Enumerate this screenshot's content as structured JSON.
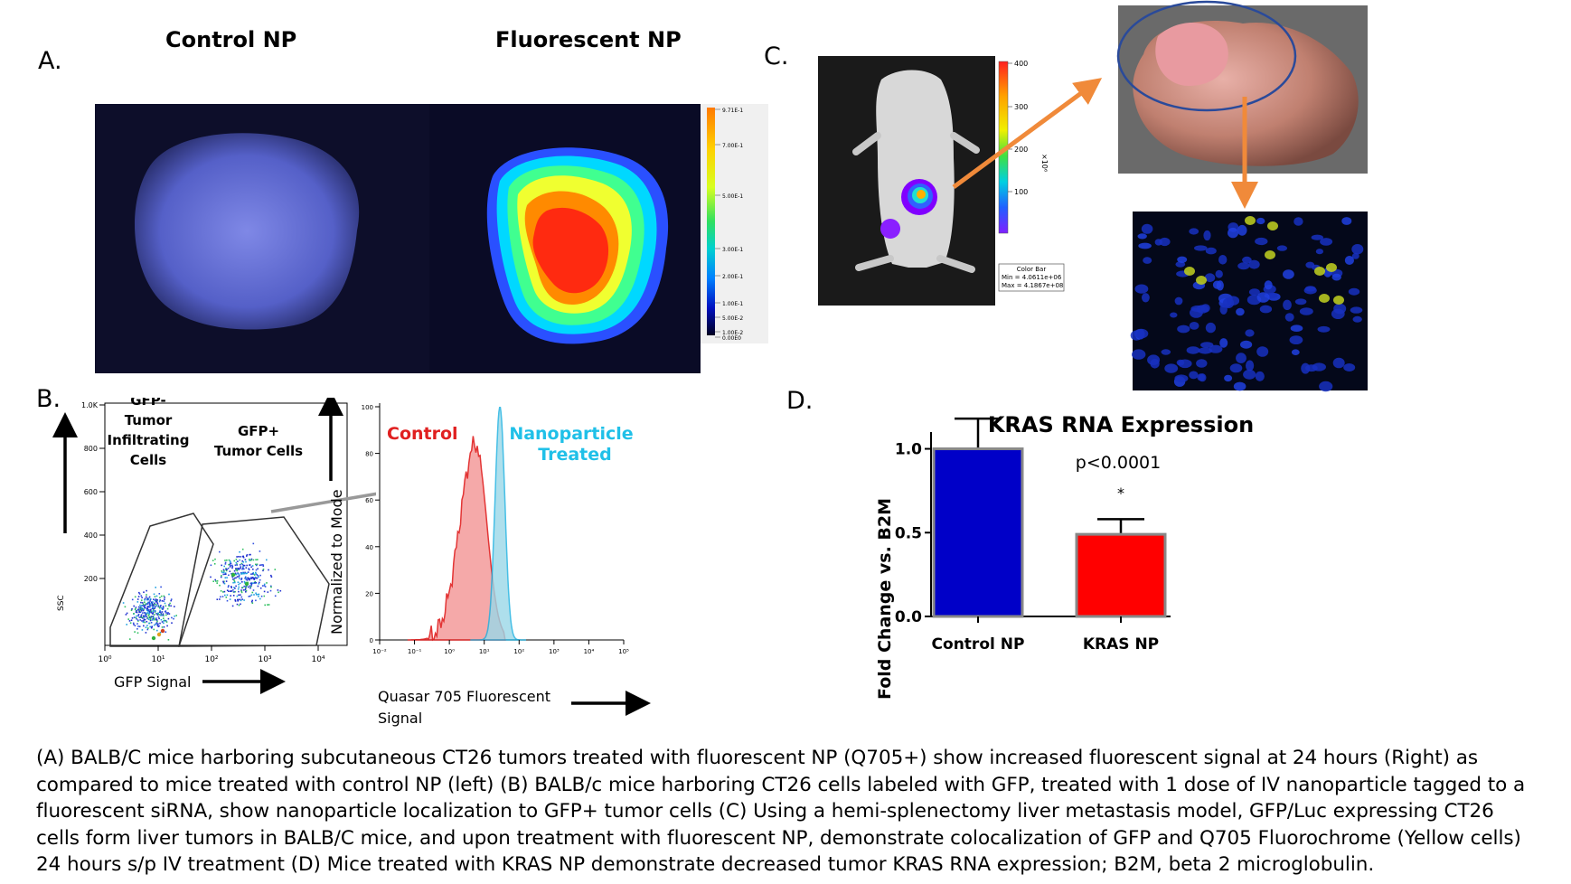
{
  "panels": {
    "a": {
      "letter": "A.",
      "left_title": "Control NP",
      "right_title": "Fluorescent NP",
      "colorbar_ticks": [
        "9.71E-1",
        "7.00E-1",
        "5.00E-1",
        "3.00E-1",
        "2.00E-1",
        "1.00E-1",
        "5.00E-2",
        "1.00E-2",
        "0.00E0"
      ]
    },
    "b": {
      "letter": "B.",
      "scatter": {
        "y_axis_label": "SSC",
        "x_axis_label": "GFP Signal",
        "y_ticks": [
          "1.0K",
          "800",
          "600",
          "400",
          "200"
        ],
        "x_ticks": [
          "10⁰",
          "10¹",
          "10²",
          "10³",
          "10⁴"
        ],
        "gate_negative_label": [
          "GFP-",
          "Tumor",
          "Infiltrating",
          "Cells"
        ],
        "gate_positive_label": [
          "GFP+",
          "Tumor Cells"
        ]
      },
      "histogram": {
        "y_axis_label": "Normalized to Mode",
        "x_axis_label_line1": "Quasar 705 Fluorescent",
        "x_axis_label_line2": "Signal",
        "legend_control": "Control",
        "legend_treated_line1": "Nanoparticle",
        "legend_treated_line2": "Treated",
        "y_ticks": [
          "100",
          "80",
          "60",
          "40",
          "20",
          "0"
        ],
        "x_ticks": [
          "10⁻²",
          "10⁻¹",
          "10⁰",
          "10¹",
          "10²",
          "10³",
          "10⁴",
          "10⁵"
        ]
      }
    },
    "c": {
      "letter": "C.",
      "colorbar_ticks": [
        "400",
        "300",
        "200",
        "100"
      ],
      "colorbar_unit": "×10⁶",
      "colorbar_title": "Color Bar",
      "colorbar_min": "Min = 4.0611e+06",
      "colorbar_max": "Max = 4.1867e+08"
    },
    "d": {
      "letter": "D."
    }
  },
  "chart_data": {
    "type": "bar",
    "title": "KRAS RNA Expression",
    "categories": [
      "Control NP",
      "KRAS NP"
    ],
    "values": [
      1.0,
      0.49
    ],
    "error_upper": [
      0.18,
      0.09
    ],
    "colors": [
      "#0000c8",
      "#ff0000"
    ],
    "ylabel": "Fold Change vs. B2M",
    "xlabel": "",
    "ylim": [
      0,
      1.1
    ],
    "y_ticks": [
      "0.0",
      "0.5",
      "1.0"
    ],
    "annotation_p": "p<0.0001",
    "annotation_star": "*"
  },
  "caption": "(A) BALB/C mice harboring subcutaneous CT26 tumors treated with fluorescent NP (Q705+) show increased fluorescent signal at 24 hours (Right) as compared to mice treated with control NP (left) (B) BALB/c mice harboring CT26 cells labeled with GFP, treated with 1 dose of IV nanoparticle tagged to a fluorescent siRNA, show nanoparticle localization to GFP+ tumor cells (C) Using a hemi-splenectomy liver metastasis model, GFP/Luc expressing CT26 cells form liver tumors in BALB/C mice, and upon treatment with fluorescent NP, demonstrate colocalization of GFP and Q705 Fluorochrome (Yellow cells) 24 hours s/p IV treatment (D) Mice treated with KRAS NP demonstrate decreased tumor KRAS RNA expression; B2M, beta 2 microglobulin."
}
